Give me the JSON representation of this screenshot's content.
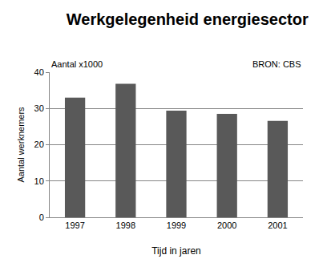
{
  "chart_data": {
    "type": "bar",
    "title": "Werkgelegenheid energiesector",
    "annotations": [
      "Aantal x1000",
      "BRON: CBS"
    ],
    "x_label": "Tijd in jaren",
    "y_label": "Aantal werknemers",
    "categories": [
      "1997",
      "1998",
      "1999",
      "2000",
      "2001"
    ],
    "values": [
      33,
      36.8,
      29.4,
      28.5,
      26.6
    ],
    "color": "#595959",
    "ylim": [
      0,
      40
    ],
    "yticks": [
      0,
      10,
      20,
      30,
      40
    ],
    "grid": true
  }
}
